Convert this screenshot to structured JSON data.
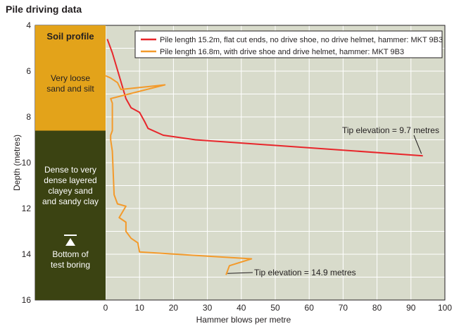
{
  "chart_data": {
    "type": "line",
    "title": "Pile driving data",
    "xlabel": "Hammer blows per metre",
    "ylabel": "Depth (metres)",
    "xlim": [
      0,
      100
    ],
    "ylim": [
      4,
      16
    ],
    "y_inverted": true,
    "xticks": [
      "0",
      "10",
      "20",
      "30",
      "40",
      "50",
      "60",
      "70",
      "80",
      "90",
      "100"
    ],
    "yticks": [
      "4",
      "6",
      "8",
      "10",
      "12",
      "14",
      "16"
    ],
    "grid": true,
    "legend_position": "top-right",
    "series": [
      {
        "name": "Pile length 15.2m, flat cut ends, no drive shoe, no drive helmet, hammer: MKT 9B3",
        "color": "#e8262b",
        "points": [
          [
            0.5,
            4.6
          ],
          [
            2,
            5.2
          ],
          [
            4,
            6.2
          ],
          [
            6,
            7.2
          ],
          [
            7.5,
            7.6
          ],
          [
            10,
            7.8
          ],
          [
            11.5,
            8.2
          ],
          [
            12.5,
            8.5
          ],
          [
            17,
            8.8
          ],
          [
            26.5,
            9.0
          ],
          [
            93.5,
            9.7
          ]
        ]
      },
      {
        "name": "Pile length 16.8m, with drive shoe and drive helmet, hammer: MKT 9B3",
        "color": "#f39a2b",
        "points": [
          [
            0,
            6.2
          ],
          [
            1.5,
            6.3
          ],
          [
            3.5,
            6.5
          ],
          [
            4.5,
            6.8
          ],
          [
            17.5,
            6.6
          ],
          [
            1.5,
            7.2
          ],
          [
            2,
            7.4
          ],
          [
            2,
            8.6
          ],
          [
            1.5,
            8.8
          ],
          [
            1.5,
            9.0
          ],
          [
            2,
            9.5
          ],
          [
            2.5,
            11.4
          ],
          [
            3.5,
            11.8
          ],
          [
            6,
            11.9
          ],
          [
            4,
            12.4
          ],
          [
            6,
            12.6
          ],
          [
            6,
            13.0
          ],
          [
            7.5,
            13.3
          ],
          [
            9.5,
            13.5
          ],
          [
            10,
            13.9
          ],
          [
            43,
            14.2
          ],
          [
            36.5,
            14.5
          ],
          [
            35.5,
            14.9
          ]
        ]
      }
    ],
    "annotations": [
      {
        "text": "Tip elevation = 9.7 metres",
        "x": 93.5,
        "y": 9.7
      },
      {
        "text": "Tip elevation = 14.9 metres",
        "x": 35.5,
        "y": 14.9
      }
    ],
    "soil_profile": {
      "header": "Soil profile",
      "layers": [
        {
          "label_lines": [
            "Very loose",
            "sand and silt"
          ],
          "top": 4,
          "bottom": 8.6,
          "color": "#e3a31a"
        },
        {
          "label_lines": [
            "Dense to very",
            "dense layered",
            "clayey sand",
            "and sandy clay"
          ],
          "top": 8.6,
          "bottom": 16,
          "color": "#3b4312"
        }
      ],
      "boring_label_lines": [
        "Bottom of",
        "test boring"
      ]
    },
    "colors": {
      "plot_background": "#d8dbcb",
      "grid": "#ffffff"
    }
  }
}
